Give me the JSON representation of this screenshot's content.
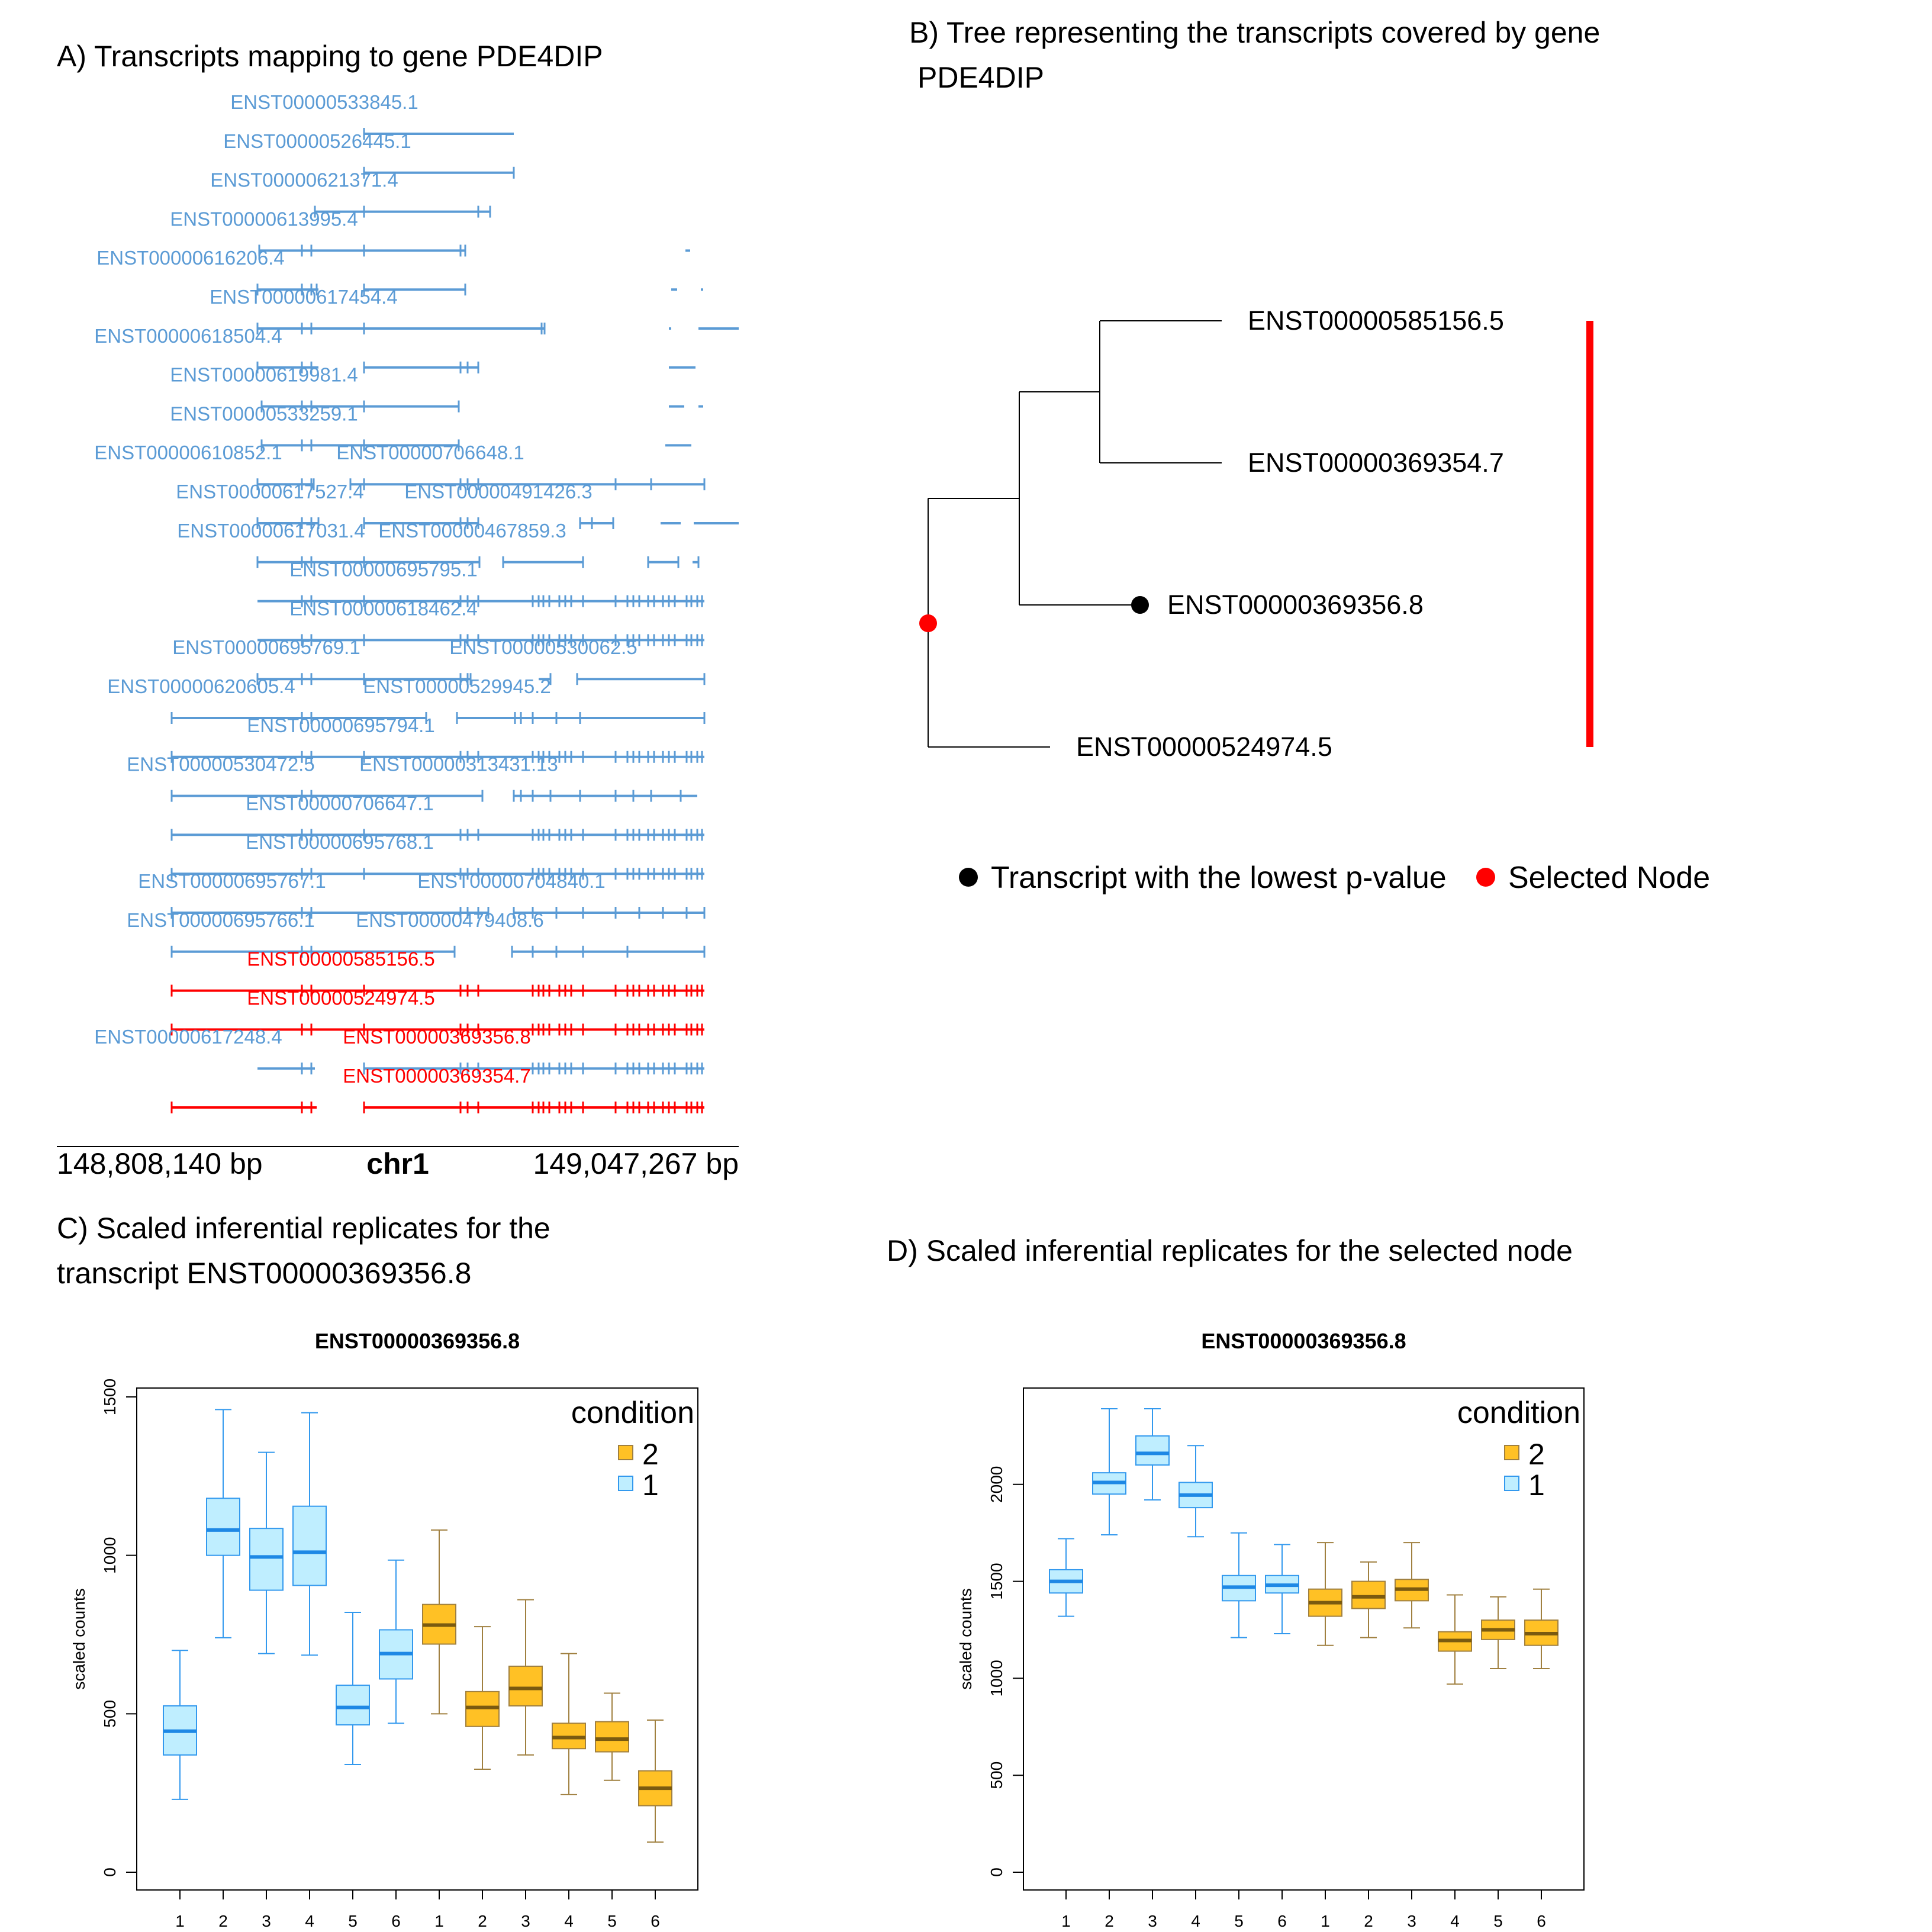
{
  "panels": {
    "a_title": "A) Transcripts mapping to gene PDE4DIP",
    "b_title_line1": "B) Tree representing the transcripts covered by gene",
    "b_title_line2": "PDE4DIP",
    "c_title_line1": "C) Scaled inferential replicates for the",
    "c_title_line2": "transcript ENST00000369356.8",
    "d_title": "D) Scaled inferential replicates for the selected node"
  },
  "colors": {
    "blue_track": "#5b9bd5",
    "red_track": "#ff0000",
    "tree_line": "#000000",
    "selected_node": "#ff0000",
    "lowest_p": "#000000",
    "cond1_fill": "#bfeeff",
    "cond1_line": "#3399ee",
    "cond1_median": "#1e88e5",
    "cond2_fill": "#ffc125",
    "cond2_line": "#a08040",
    "cond2_median": "#7a5a10"
  },
  "genome_axis": {
    "start": "148,808,140 bp",
    "chrom": "chr1",
    "end": "149,047,267 bp"
  },
  "transcripts": [
    {
      "label": "ENST00000533845.1",
      "color": "blue"
    },
    {
      "label": "ENST00000526445.1",
      "color": "blue"
    },
    {
      "label": "ENST00000621371.4",
      "color": "blue"
    },
    {
      "label": "ENST00000613995.4",
      "color": "blue"
    },
    {
      "label": "ENST00000616206.4",
      "color": "blue"
    },
    {
      "label": "ENST00000617454.4",
      "color": "blue"
    },
    {
      "label": "ENST00000618504.4",
      "color": "blue"
    },
    {
      "label": "ENST00000619981.4",
      "color": "blue"
    },
    {
      "label": "ENST00000533259.1",
      "color": "blue"
    },
    {
      "label": "ENST00000610852.1",
      "color": "blue"
    },
    {
      "label": "ENST00000706648.1",
      "color": "blue"
    },
    {
      "label": "ENST00000617527.4",
      "color": "blue"
    },
    {
      "label": "ENST00000491426.3",
      "color": "blue"
    },
    {
      "label": "ENST00000617031.4",
      "color": "blue"
    },
    {
      "label": "ENST00000467859.3",
      "color": "blue"
    },
    {
      "label": "ENST00000695795.1",
      "color": "blue"
    },
    {
      "label": "ENST00000618462.4",
      "color": "blue"
    },
    {
      "label": "ENST00000695769.1",
      "color": "blue"
    },
    {
      "label": "ENST00000530062.5",
      "color": "blue"
    },
    {
      "label": "ENST00000620605.4",
      "color": "blue"
    },
    {
      "label": "ENST00000529945.2",
      "color": "blue"
    },
    {
      "label": "ENST00000695794.1",
      "color": "blue"
    },
    {
      "label": "ENST00000530472.5",
      "color": "blue"
    },
    {
      "label": "ENST00000313431.13",
      "color": "blue"
    },
    {
      "label": "ENST00000706647.1",
      "color": "blue"
    },
    {
      "label": "ENST00000695768.1",
      "color": "blue"
    },
    {
      "label": "ENST00000695767.1",
      "color": "blue"
    },
    {
      "label": "ENST00000704840.1",
      "color": "blue"
    },
    {
      "label": "ENST00000695766.1",
      "color": "blue"
    },
    {
      "label": "ENST00000479408.6",
      "color": "blue"
    },
    {
      "label": "ENST00000585156.5",
      "color": "red"
    },
    {
      "label": "ENST00000524974.5",
      "color": "red"
    },
    {
      "label": "ENST00000617248.4",
      "color": "blue"
    },
    {
      "label": "ENST00000369356.8",
      "color": "red"
    },
    {
      "label": "ENST00000369354.7",
      "color": "red"
    }
  ],
  "tree": {
    "leaves": [
      {
        "label": "ENST00000585156.5"
      },
      {
        "label": "ENST00000369354.7"
      },
      {
        "label": "ENST00000369356.8",
        "lowest_p": true
      },
      {
        "label": "ENST00000524974.5"
      }
    ],
    "legend": {
      "lowest_p": "Transcript with the lowest p-value",
      "selected": "Selected Node"
    }
  },
  "chart_data": [
    {
      "type": "box",
      "title": "ENST00000369356.8",
      "ylabel": "scaled counts",
      "ylim": [
        0,
        1500
      ],
      "yticks": [
        "0",
        "500",
        "1000",
        "1500"
      ],
      "categories": [
        "1",
        "2",
        "3",
        "4",
        "5",
        "6",
        "1",
        "2",
        "3",
        "4",
        "5",
        "6"
      ],
      "condition": [
        "1",
        "1",
        "1",
        "1",
        "1",
        "1",
        "2",
        "2",
        "2",
        "2",
        "2",
        "2"
      ],
      "legend_title": "condition",
      "legend_items": [
        "2",
        "1"
      ],
      "boxes": [
        {
          "min": 230,
          "q1": 370,
          "median": 445,
          "q3": 525,
          "max": 700
        },
        {
          "min": 740,
          "q1": 1000,
          "median": 1080,
          "q3": 1180,
          "max": 1460
        },
        {
          "min": 690,
          "q1": 890,
          "median": 995,
          "q3": 1085,
          "max": 1325
        },
        {
          "min": 685,
          "q1": 905,
          "median": 1010,
          "q3": 1155,
          "max": 1450
        },
        {
          "min": 340,
          "q1": 465,
          "median": 520,
          "q3": 590,
          "max": 820
        },
        {
          "min": 470,
          "q1": 610,
          "median": 690,
          "q3": 765,
          "max": 985
        },
        {
          "min": 500,
          "q1": 720,
          "median": 780,
          "q3": 845,
          "max": 1080
        },
        {
          "min": 325,
          "q1": 460,
          "median": 520,
          "q3": 570,
          "max": 775
        },
        {
          "min": 370,
          "q1": 525,
          "median": 580,
          "q3": 650,
          "max": 860
        },
        {
          "min": 245,
          "q1": 390,
          "median": 425,
          "q3": 470,
          "max": 690
        },
        {
          "min": 290,
          "q1": 380,
          "median": 420,
          "q3": 475,
          "max": 565
        },
        {
          "min": 95,
          "q1": 210,
          "median": 265,
          "q3": 320,
          "max": 480
        }
      ]
    },
    {
      "type": "box",
      "title": "ENST00000369356.8",
      "ylabel": "scaled counts",
      "ylim": [
        0,
        2500
      ],
      "yticks": [
        "0",
        "500",
        "1000",
        "1500",
        "2000"
      ],
      "categories": [
        "1",
        "2",
        "3",
        "4",
        "5",
        "6",
        "1",
        "2",
        "3",
        "4",
        "5",
        "6"
      ],
      "condition": [
        "1",
        "1",
        "1",
        "1",
        "1",
        "1",
        "2",
        "2",
        "2",
        "2",
        "2",
        "2"
      ],
      "legend_title": "condition",
      "legend_items": [
        "2",
        "1"
      ],
      "boxes": [
        {
          "min": 1320,
          "q1": 1440,
          "median": 1500,
          "q3": 1560,
          "max": 1720
        },
        {
          "min": 1740,
          "q1": 1950,
          "median": 2010,
          "q3": 2060,
          "max": 2390
        },
        {
          "min": 1920,
          "q1": 2100,
          "median": 2160,
          "q3": 2250,
          "max": 2390
        },
        {
          "min": 1730,
          "q1": 1880,
          "median": 1945,
          "q3": 2010,
          "max": 2200
        },
        {
          "min": 1210,
          "q1": 1400,
          "median": 1470,
          "q3": 1530,
          "max": 1750
        },
        {
          "min": 1230,
          "q1": 1440,
          "median": 1480,
          "q3": 1530,
          "max": 1690
        },
        {
          "min": 1170,
          "q1": 1320,
          "median": 1390,
          "q3": 1460,
          "max": 1700
        },
        {
          "min": 1210,
          "q1": 1360,
          "median": 1420,
          "q3": 1500,
          "max": 1600
        },
        {
          "min": 1260,
          "q1": 1400,
          "median": 1460,
          "q3": 1510,
          "max": 1700
        },
        {
          "min": 970,
          "q1": 1140,
          "median": 1195,
          "q3": 1240,
          "max": 1430
        },
        {
          "min": 1050,
          "q1": 1200,
          "median": 1250,
          "q3": 1300,
          "max": 1420
        },
        {
          "min": 1050,
          "q1": 1170,
          "median": 1230,
          "q3": 1300,
          "max": 1460
        }
      ]
    }
  ]
}
